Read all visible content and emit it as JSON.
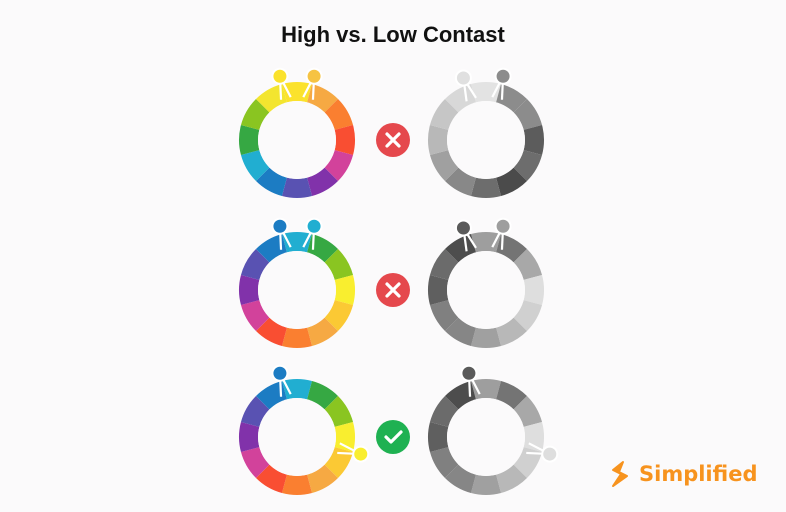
{
  "title": "High vs. Low Contast",
  "brand": {
    "name": "Simplified",
    "color": "#f7931e",
    "icon": "simplified-logo-icon"
  },
  "status_icons": {
    "bad": "x-icon",
    "good": "check-icon",
    "bad_color": "#e5484d",
    "good_color": "#1fb152"
  },
  "rows": [
    {
      "verdict": "bad",
      "color_wheel": [
        "#fbe22c",
        "#f6a943",
        "#fa7f30",
        "#f94e32",
        "#d2429b",
        "#8132aa",
        "#5952b2",
        "#1c7cc3",
        "#21aed1",
        "#36a843",
        "#8ac521",
        "#f3e52f"
      ],
      "gray_wheel": [
        "#e3e3e3",
        "#8c8c8c",
        "#8c8c8c",
        "#5c5c5c",
        "#6d6d6d",
        "#4b4b4b",
        "#6d6d6d",
        "#888888",
        "#a0a0a0",
        "#b8b8b8",
        "#c6c6c6",
        "#d8d8d8"
      ],
      "color_pins": [
        "#fbe22c",
        "#f6c343"
      ],
      "gray_pins": [
        "#e0e0e0",
        "#8c8c8c"
      ]
    },
    {
      "verdict": "bad",
      "color_wheel": [
        "#21aed1",
        "#36a843",
        "#8ac521",
        "#f9ee2f",
        "#fbc934",
        "#f6a943",
        "#fa7f30",
        "#f94e32",
        "#d2429b",
        "#8132aa",
        "#5952b2",
        "#1c7cc3"
      ],
      "gray_wheel": [
        "#9e9e9e",
        "#747474",
        "#a8a8a8",
        "#dedede",
        "#d0d0d0",
        "#b8b8b8",
        "#a0a0a0",
        "#868686",
        "#808080",
        "#5f5f5f",
        "#6b6b6b",
        "#4d4d4d"
      ],
      "color_pins": [
        "#1c7cc3",
        "#21aed1"
      ],
      "gray_pins": [
        "#5a5a5a",
        "#9e9e9e"
      ]
    },
    {
      "verdict": "good",
      "color_wheel": [
        "#21aed1",
        "#36a843",
        "#8ac521",
        "#f9ee2f",
        "#fbc934",
        "#f6a943",
        "#fa7f30",
        "#f94e32",
        "#d2429b",
        "#8132aa",
        "#5952b2",
        "#1c7cc3"
      ],
      "gray_wheel": [
        "#9e9e9e",
        "#747474",
        "#a8a8a8",
        "#dedede",
        "#d0d0d0",
        "#b8b8b8",
        "#a0a0a0",
        "#868686",
        "#808080",
        "#5f5f5f",
        "#6b6b6b",
        "#4d4d4d"
      ],
      "color_pins": [
        "#1c7cc3",
        "#f9ee2f"
      ],
      "gray_pins": [
        "#5a5a5a",
        "#dedede"
      ]
    }
  ]
}
